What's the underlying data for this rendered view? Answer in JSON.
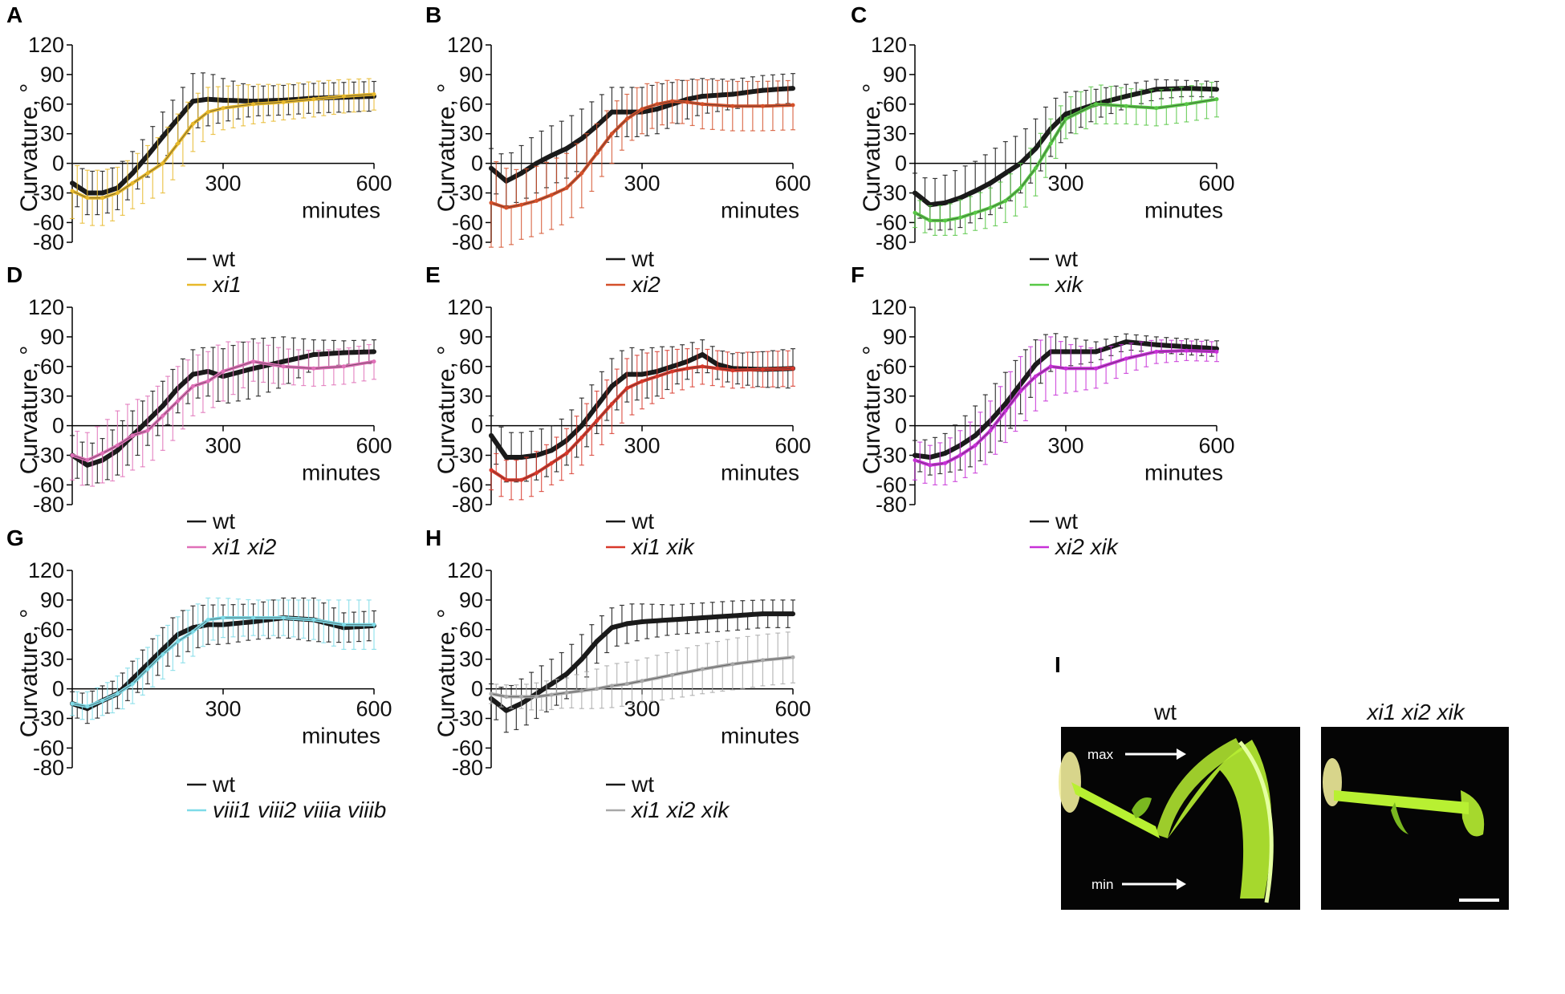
{
  "figure_colors": {
    "wt": "#1a1a1a",
    "axis": "#000000",
    "photo_bg": "#050505",
    "seedling": "#b8f032",
    "seedling_light": "#e4ffa0",
    "cotyledon": "#f0ec9a"
  },
  "chart_data": [
    {
      "panel": "A",
      "type": "line",
      "xlabel": "minutes",
      "ylabel": "Curvature, °",
      "xticks": [
        300,
        600
      ],
      "yticks": [
        120,
        90,
        60,
        30,
        0,
        -30,
        -60,
        -80
      ],
      "xlim": [
        0,
        600
      ],
      "ylim": [
        -80,
        120
      ],
      "series": [
        {
          "name": "wt",
          "color": "#1a1a1a",
          "x": [
            0,
            30,
            60,
            90,
            120,
            150,
            180,
            210,
            240,
            270,
            300,
            360,
            420,
            480,
            540,
            600
          ],
          "y": [
            -20,
            -30,
            -30,
            -25,
            -10,
            8,
            27,
            45,
            63,
            65,
            64,
            63,
            64,
            66,
            67,
            68
          ],
          "err": [
            20,
            22,
            22,
            22,
            22,
            22,
            25,
            25,
            28,
            27,
            22,
            15,
            15,
            15,
            15,
            15
          ]
        },
        {
          "name": "xi1",
          "color": "#e8b92a",
          "x": [
            0,
            30,
            60,
            90,
            120,
            150,
            180,
            210,
            240,
            270,
            300,
            360,
            420,
            480,
            540,
            600
          ],
          "y": [
            -28,
            -35,
            -35,
            -30,
            -20,
            -10,
            0,
            20,
            40,
            52,
            56,
            60,
            62,
            65,
            68,
            70
          ],
          "err": [
            28,
            28,
            28,
            26,
            26,
            28,
            30,
            30,
            28,
            25,
            22,
            20,
            18,
            18,
            17,
            16
          ]
        }
      ]
    },
    {
      "panel": "B",
      "type": "line",
      "xlabel": "minutes",
      "ylabel": "Curvature, °",
      "xticks": [
        300,
        600
      ],
      "yticks": [
        120,
        90,
        60,
        30,
        0,
        -30,
        -60,
        -80
      ],
      "xlim": [
        0,
        600
      ],
      "ylim": [
        -80,
        120
      ],
      "series": [
        {
          "name": "wt",
          "color": "#1a1a1a",
          "x": [
            0,
            30,
            60,
            90,
            120,
            150,
            180,
            210,
            240,
            270,
            300,
            330,
            360,
            390,
            420,
            480,
            540,
            600
          ],
          "y": [
            -5,
            -18,
            -10,
            0,
            8,
            15,
            25,
            38,
            52,
            52,
            52,
            55,
            60,
            65,
            68,
            70,
            74,
            76
          ],
          "err": [
            20,
            25,
            28,
            30,
            30,
            30,
            30,
            28,
            25,
            25,
            25,
            25,
            22,
            20,
            18,
            15,
            15,
            15
          ]
        },
        {
          "name": "xi2",
          "color": "#d4502a",
          "x": [
            0,
            30,
            60,
            90,
            120,
            150,
            180,
            210,
            240,
            270,
            300,
            330,
            360,
            390,
            420,
            480,
            540,
            600
          ],
          "y": [
            -40,
            -45,
            -42,
            -38,
            -32,
            -25,
            -10,
            10,
            30,
            45,
            55,
            60,
            63,
            62,
            60,
            58,
            58,
            59
          ],
          "err": [
            45,
            40,
            35,
            35,
            35,
            35,
            35,
            30,
            30,
            25,
            25,
            22,
            22,
            22,
            25,
            25,
            25,
            25
          ]
        }
      ]
    },
    {
      "panel": "C",
      "type": "line",
      "xlabel": "minutes",
      "ylabel": "Curvature, °",
      "xticks": [
        300,
        600
      ],
      "yticks": [
        120,
        90,
        60,
        30,
        0,
        -30,
        -60,
        -80
      ],
      "xlim": [
        0,
        600
      ],
      "ylim": [
        -80,
        120
      ],
      "series": [
        {
          "name": "wt",
          "color": "#1a1a1a",
          "x": [
            0,
            30,
            60,
            90,
            120,
            150,
            180,
            210,
            240,
            270,
            300,
            360,
            420,
            480,
            540,
            600
          ],
          "y": [
            -30,
            -42,
            -40,
            -35,
            -28,
            -20,
            -10,
            0,
            15,
            35,
            50,
            60,
            68,
            75,
            76,
            75
          ],
          "err": [
            20,
            25,
            28,
            30,
            30,
            32,
            32,
            30,
            30,
            28,
            22,
            15,
            12,
            10,
            8,
            8
          ]
        },
        {
          "name": "xik",
          "color": "#58c846",
          "x": [
            0,
            30,
            60,
            90,
            120,
            150,
            180,
            210,
            240,
            270,
            300,
            360,
            420,
            480,
            540,
            600
          ],
          "y": [
            -50,
            -58,
            -58,
            -55,
            -50,
            -45,
            -38,
            -25,
            -5,
            20,
            45,
            60,
            58,
            56,
            60,
            65
          ],
          "err": [
            15,
            15,
            15,
            18,
            18,
            20,
            22,
            25,
            28,
            25,
            20,
            20,
            18,
            18,
            18,
            18
          ]
        }
      ]
    },
    {
      "panel": "D",
      "type": "line",
      "xlabel": "minutes",
      "ylabel": "Curvature, °",
      "xticks": [
        300,
        600
      ],
      "yticks": [
        120,
        90,
        60,
        30,
        0,
        -30,
        -60,
        -80
      ],
      "xlim": [
        0,
        600
      ],
      "ylim": [
        -80,
        120
      ],
      "series": [
        {
          "name": "wt",
          "color": "#1a1a1a",
          "x": [
            0,
            30,
            60,
            90,
            120,
            150,
            180,
            210,
            240,
            270,
            300,
            360,
            420,
            480,
            540,
            600
          ],
          "y": [
            -30,
            -40,
            -35,
            -25,
            -10,
            5,
            20,
            38,
            52,
            55,
            50,
            58,
            65,
            72,
            74,
            75
          ],
          "err": [
            20,
            20,
            22,
            25,
            25,
            25,
            25,
            25,
            25,
            25,
            28,
            30,
            25,
            15,
            12,
            12
          ]
        },
        {
          "name": "xi1 xi2",
          "color": "#e070b8",
          "x": [
            0,
            30,
            60,
            90,
            120,
            150,
            180,
            210,
            240,
            270,
            300,
            360,
            420,
            480,
            540,
            600
          ],
          "y": [
            -30,
            -35,
            -28,
            -20,
            -10,
            -5,
            10,
            25,
            40,
            45,
            55,
            65,
            60,
            58,
            60,
            65
          ],
          "err": [
            25,
            28,
            30,
            35,
            35,
            35,
            35,
            35,
            30,
            30,
            30,
            20,
            18,
            18,
            18,
            18
          ]
        }
      ]
    },
    {
      "panel": "E",
      "type": "line",
      "xlabel": "minutes",
      "ylabel": "Curvature, °",
      "xticks": [
        300,
        600
      ],
      "yticks": [
        120,
        90,
        60,
        30,
        0,
        -30,
        -60,
        -80
      ],
      "xlim": [
        0,
        600
      ],
      "ylim": [
        -80,
        120
      ],
      "series": [
        {
          "name": "wt",
          "color": "#1a1a1a",
          "x": [
            0,
            30,
            60,
            90,
            120,
            150,
            180,
            210,
            240,
            270,
            300,
            330,
            360,
            390,
            420,
            450,
            480,
            540,
            600
          ],
          "y": [
            -10,
            -32,
            -32,
            -30,
            -25,
            -15,
            0,
            20,
            40,
            52,
            52,
            55,
            60,
            65,
            72,
            62,
            58,
            57,
            58
          ],
          "err": [
            20,
            25,
            25,
            25,
            25,
            25,
            28,
            28,
            28,
            28,
            25,
            25,
            20,
            18,
            15,
            15,
            15,
            18,
            20
          ]
        },
        {
          "name": "xi1 xik",
          "color": "#d8382a",
          "x": [
            0,
            30,
            60,
            90,
            120,
            150,
            180,
            210,
            240,
            270,
            300,
            330,
            360,
            390,
            420,
            450,
            480,
            540,
            600
          ],
          "y": [
            -45,
            -55,
            -55,
            -48,
            -38,
            -28,
            -12,
            5,
            22,
            38,
            45,
            50,
            55,
            58,
            60,
            58,
            56,
            57,
            58
          ],
          "err": [
            20,
            20,
            20,
            22,
            22,
            25,
            28,
            30,
            30,
            30,
            28,
            25,
            22,
            20,
            18,
            18,
            18,
            18,
            18
          ]
        }
      ]
    },
    {
      "panel": "F",
      "type": "line",
      "xlabel": "minutes",
      "ylabel": "Curvature, °",
      "xticks": [
        300,
        600
      ],
      "yticks": [
        120,
        90,
        60,
        30,
        0,
        -30,
        -60,
        -80
      ],
      "xlim": [
        0,
        600
      ],
      "ylim": [
        -80,
        120
      ],
      "series": [
        {
          "name": "wt",
          "color": "#1a1a1a",
          "x": [
            0,
            30,
            60,
            90,
            120,
            150,
            180,
            210,
            240,
            270,
            300,
            360,
            420,
            480,
            540,
            600
          ],
          "y": [
            -30,
            -32,
            -28,
            -20,
            -10,
            5,
            22,
            42,
            62,
            75,
            75,
            75,
            85,
            82,
            80,
            78
          ],
          "err": [
            15,
            18,
            20,
            25,
            30,
            32,
            32,
            30,
            25,
            20,
            15,
            10,
            8,
            8,
            8,
            8
          ]
        },
        {
          "name": "xi2 xik",
          "color": "#c830d8",
          "x": [
            0,
            30,
            60,
            90,
            120,
            150,
            180,
            210,
            240,
            270,
            300,
            360,
            420,
            480,
            540,
            600
          ],
          "y": [
            -35,
            -40,
            -38,
            -30,
            -20,
            -5,
            15,
            35,
            50,
            60,
            58,
            58,
            68,
            75,
            76,
            75
          ],
          "err": [
            20,
            20,
            22,
            25,
            28,
            30,
            32,
            35,
            35,
            30,
            25,
            20,
            15,
            12,
            10,
            10
          ]
        }
      ]
    },
    {
      "panel": "G",
      "type": "line",
      "xlabel": "minutes",
      "ylabel": "Curvature, °",
      "xticks": [
        300,
        600
      ],
      "yticks": [
        120,
        90,
        60,
        30,
        0,
        -30,
        -60,
        -80
      ],
      "xlim": [
        0,
        600
      ],
      "ylim": [
        -80,
        120
      ],
      "series": [
        {
          "name": "wt",
          "color": "#1a1a1a",
          "x": [
            0,
            30,
            60,
            90,
            120,
            150,
            180,
            210,
            240,
            270,
            300,
            360,
            420,
            480,
            540,
            600
          ],
          "y": [
            -15,
            -20,
            -12,
            -5,
            10,
            25,
            40,
            55,
            62,
            65,
            65,
            68,
            72,
            70,
            62,
            64
          ],
          "err": [
            12,
            15,
            15,
            15,
            18,
            20,
            22,
            22,
            22,
            20,
            20,
            18,
            20,
            22,
            15,
            15
          ]
        },
        {
          "name": "viii1 viii2 viiia viiib",
          "color": "#7edbe8",
          "x": [
            0,
            30,
            60,
            90,
            120,
            150,
            180,
            210,
            240,
            270,
            300,
            360,
            420,
            480,
            540,
            600
          ],
          "y": [
            -15,
            -18,
            -12,
            -5,
            5,
            20,
            35,
            48,
            58,
            70,
            72,
            72,
            72,
            70,
            65,
            65
          ],
          "err": [
            12,
            15,
            15,
            18,
            20,
            22,
            25,
            25,
            25,
            22,
            20,
            18,
            18,
            20,
            25,
            25
          ]
        }
      ]
    },
    {
      "panel": "H",
      "type": "line",
      "xlabel": "minutes",
      "ylabel": "Curvature, °",
      "xticks": [
        300,
        600
      ],
      "yticks": [
        120,
        90,
        60,
        30,
        0,
        -30,
        -60,
        -80
      ],
      "xlim": [
        0,
        600
      ],
      "ylim": [
        -80,
        120
      ],
      "series": [
        {
          "name": "wt",
          "color": "#1a1a1a",
          "x": [
            0,
            30,
            60,
            90,
            120,
            150,
            180,
            210,
            240,
            270,
            300,
            360,
            420,
            480,
            540,
            600
          ],
          "y": [
            -10,
            -22,
            -15,
            -5,
            5,
            15,
            30,
            48,
            62,
            66,
            68,
            70,
            72,
            74,
            76,
            76
          ],
          "err": [
            15,
            22,
            25,
            25,
            25,
            25,
            25,
            22,
            20,
            20,
            18,
            15,
            15,
            15,
            14,
            14
          ]
        },
        {
          "name": "xi1 xi2 xik",
          "color": "#a8a8a8",
          "x": [
            0,
            30,
            60,
            90,
            120,
            150,
            180,
            210,
            240,
            270,
            300,
            360,
            420,
            480,
            540,
            600
          ],
          "y": [
            -5,
            -8,
            -8,
            -8,
            -6,
            -4,
            -2,
            0,
            3,
            5,
            8,
            14,
            20,
            25,
            29,
            32
          ],
          "err": [
            10,
            12,
            12,
            14,
            15,
            15,
            18,
            20,
            22,
            22,
            22,
            24,
            25,
            26,
            26,
            26
          ]
        }
      ]
    }
  ],
  "photo_panel": {
    "label": "I",
    "left_title": "wt",
    "right_title": "xi1 xi2 xik",
    "max_label": "max",
    "min_label": "min"
  }
}
